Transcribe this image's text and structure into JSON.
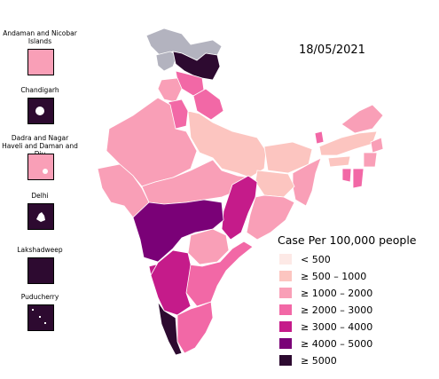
{
  "date": "18/05/2021",
  "legend": {
    "title": "Case Per 100,000 people",
    "items": [
      {
        "label": "< 500",
        "color": "#fde9e6"
      },
      {
        "label": "≥ 500 – 1000",
        "color": "#fcc5c0"
      },
      {
        "label": "≥ 1000 – 2000",
        "color": "#f99fb7"
      },
      {
        "label": "≥ 2000 – 3000",
        "color": "#f268a6"
      },
      {
        "label": "≥ 3000 – 4000",
        "color": "#c51b8a"
      },
      {
        "label": "≥ 4000 – 5000",
        "color": "#7a0177"
      },
      {
        "label": "≥ 5000",
        "color": "#2d0a30"
      }
    ]
  },
  "insets": [
    {
      "label": "Andaman and Nicobar Islands",
      "color": "#f99fb7"
    },
    {
      "label": "Chandigarh",
      "color": "#2d0a30"
    },
    {
      "label": "Dadra and Nagar Haveli and Daman and Diu",
      "color": "#f99fb7"
    },
    {
      "label": "Delhi",
      "color": "#2d0a30"
    },
    {
      "label": "Lakshadweep",
      "color": "#2d0a30"
    },
    {
      "label": "Puducherry",
      "color": "#2d0a30"
    }
  ],
  "disputed_color": "#b3b3bf"
}
